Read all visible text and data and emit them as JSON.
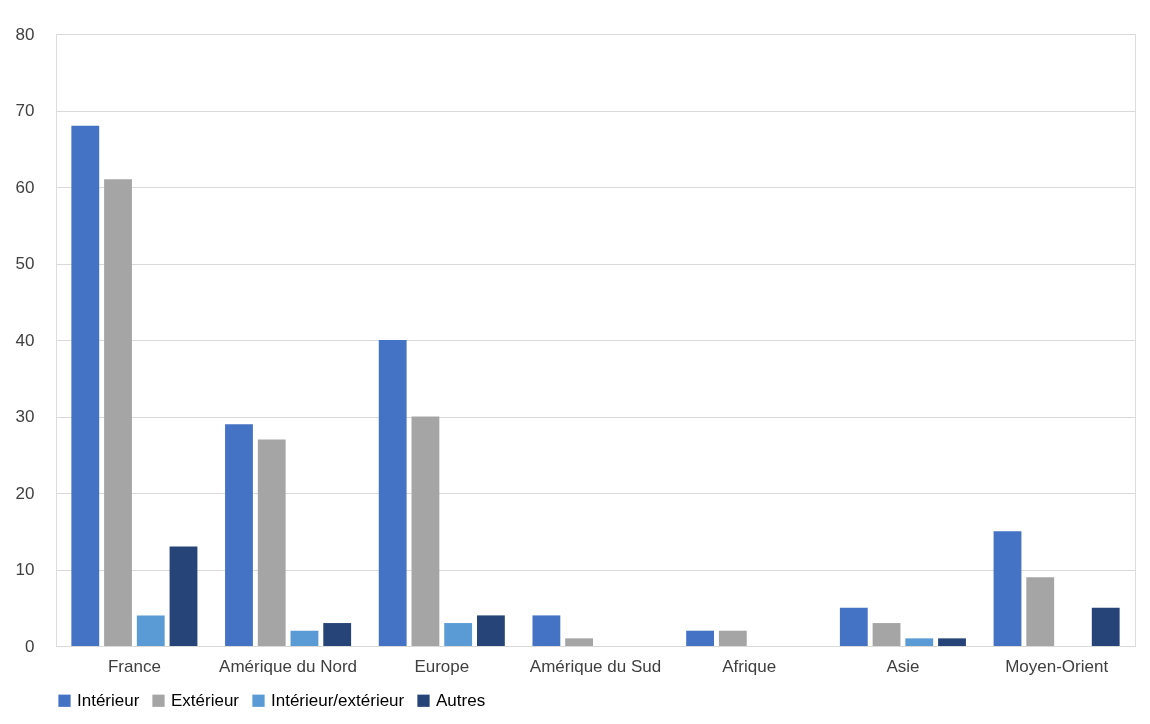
{
  "chart_data": {
    "type": "bar",
    "categories": [
      "France",
      "Amérique du Nord",
      "Europe",
      "Amérique du Sud",
      "Afrique",
      "Asie",
      "Moyen-Orient"
    ],
    "series": [
      {
        "name": "Intérieur",
        "color": "#4472c4",
        "values": [
          68,
          29,
          40,
          4,
          2,
          5,
          15
        ]
      },
      {
        "name": "Extérieur",
        "color": "#a5a5a5",
        "values": [
          61,
          27,
          30,
          1,
          2,
          3,
          9
        ]
      },
      {
        "name": "Intérieur/extérieur",
        "color": "#5b9bd5",
        "values": [
          4,
          2,
          3,
          0,
          0,
          1,
          0
        ]
      },
      {
        "name": "Autres",
        "color": "#264478",
        "values": [
          13,
          3,
          4,
          0,
          0,
          1,
          5
        ]
      }
    ],
    "ylim": [
      0,
      80
    ],
    "yticks": [
      0,
      10,
      20,
      30,
      40,
      50,
      60,
      70,
      80
    ],
    "grid": "y",
    "legend": "bottom"
  }
}
